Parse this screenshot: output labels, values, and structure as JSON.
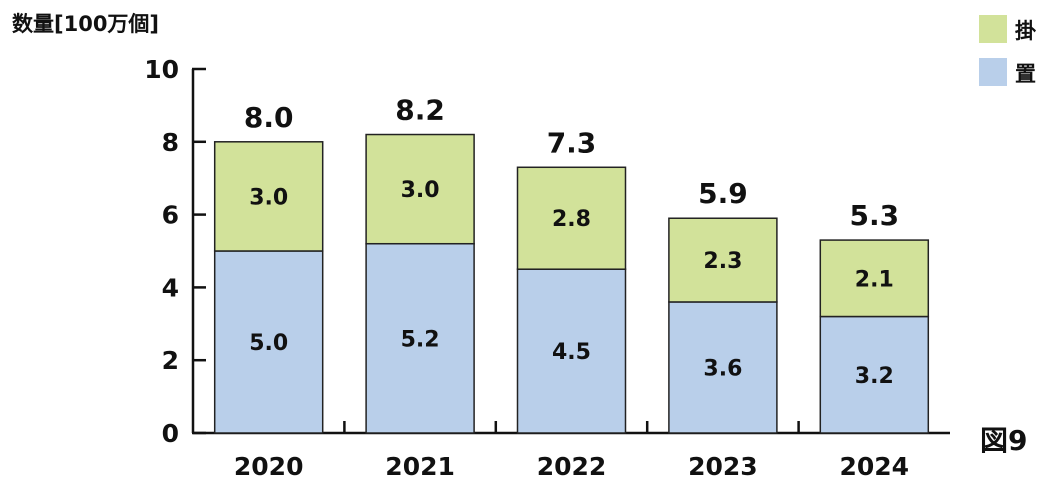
{
  "chart_data": {
    "type": "bar",
    "stacked": true,
    "ylabel": "数量[100万個]",
    "categories": [
      "2020",
      "2021",
      "2022",
      "2023",
      "2024"
    ],
    "ylim": [
      0,
      10
    ],
    "yticks": [
      "0",
      "2",
      "4",
      "6",
      "8",
      "10"
    ],
    "series": [
      {
        "name": "置",
        "values": [
          5.0,
          5.2,
          4.5,
          3.6,
          3.2
        ],
        "color": "#b9cfea"
      },
      {
        "name": "掛",
        "values": [
          3.0,
          3.0,
          2.8,
          2.3,
          2.1
        ],
        "color": "#d2e29a"
      }
    ],
    "totals": [
      8.0,
      8.2,
      7.3,
      5.9,
      5.3
    ],
    "legend_position": "top-right",
    "grid": false
  },
  "figure_label": "図9"
}
